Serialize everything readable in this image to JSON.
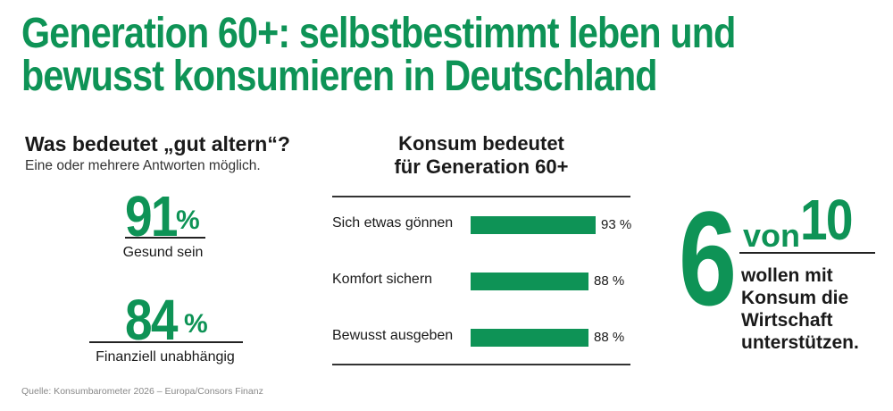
{
  "headline": "Generation 60+: selbstbestimmt leben und bewusst konsumieren in Deutschland",
  "left": {
    "title": "Was bedeutet „gut altern“?",
    "subtitle": "Eine oder mehrere Antworten möglich.",
    "stats": [
      {
        "number": "91",
        "unit": "%",
        "label": "Gesund sein"
      },
      {
        "number": "84",
        "unit": "%",
        "label": "Finanziell unabhängig"
      }
    ]
  },
  "chart_data": {
    "type": "bar",
    "orientation": "horizontal",
    "title": "Konsum bedeutet für Generation 60+",
    "title_lines": [
      "Konsum bedeutet",
      "für Generation 60+"
    ],
    "categories": [
      "Sich etwas gönnen",
      "Komfort sichern",
      "Bewusst ausgeben"
    ],
    "values": [
      93,
      88,
      88
    ],
    "value_labels": [
      "93 %",
      "88 %",
      "88 %"
    ],
    "unit": "%",
    "xlim": [
      0,
      100
    ],
    "color": "#0e9356"
  },
  "right": {
    "big_number": "6",
    "von": "von",
    "ten": "10",
    "text": "wollen mit Konsum die Wirtschaft unterstützen."
  },
  "source": "Quelle: Konsumbarometer 2026 – Europa/Consors Finanz",
  "colors": {
    "accent": "#0e9356",
    "text": "#1a1a1a"
  }
}
